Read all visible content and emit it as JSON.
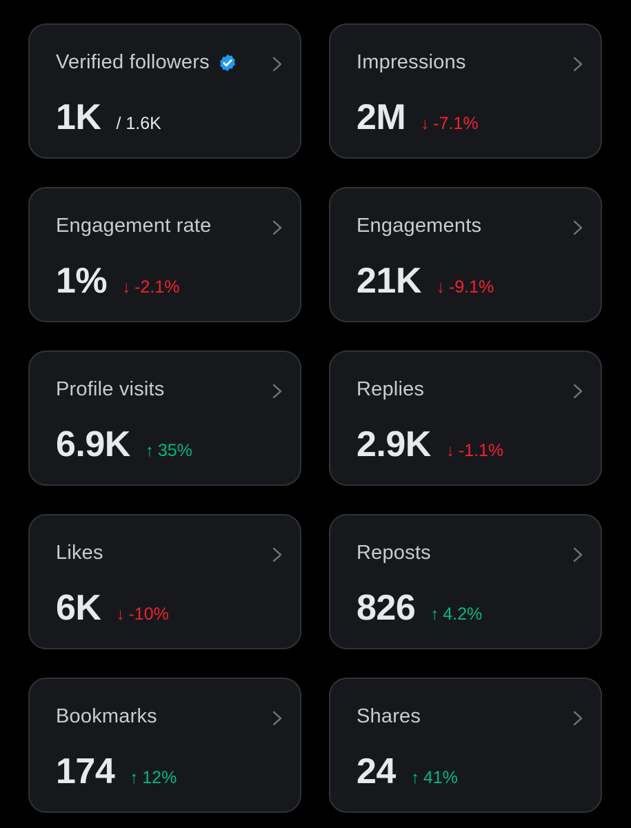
{
  "colors": {
    "background": "#000000",
    "card": "#16181c",
    "border": "#2f3336",
    "text": "#e7e9ea",
    "title": "#c8ccd0",
    "down": "#f4212e",
    "up": "#00ba7c",
    "verified": "#1d9bf0"
  },
  "metrics": [
    {
      "title": "Verified followers",
      "value": "1K",
      "sub": "/ 1.6K",
      "verified": true,
      "icon": "chevron-right-icon"
    },
    {
      "title": "Impressions",
      "value": "2M",
      "arrow": "↓",
      "change": "-7.1%",
      "trend": "down",
      "icon": "chevron-right-icon"
    },
    {
      "title": "Engagement rate",
      "value": "1%",
      "arrow": "↓",
      "change": "-2.1%",
      "trend": "down",
      "icon": "chevron-right-icon"
    },
    {
      "title": "Engagements",
      "value": "21K",
      "arrow": "↓",
      "change": "-9.1%",
      "trend": "down",
      "icon": "chevron-right-icon"
    },
    {
      "title": "Profile visits",
      "value": "6.9K",
      "arrow": "↑",
      "change": "35%",
      "trend": "up",
      "icon": "chevron-right-icon"
    },
    {
      "title": "Replies",
      "value": "2.9K",
      "arrow": "↓",
      "change": "-1.1%",
      "trend": "down",
      "icon": "chevron-right-icon"
    },
    {
      "title": "Likes",
      "value": "6K",
      "arrow": "↓",
      "change": "-10%",
      "trend": "down",
      "icon": "chevron-right-icon"
    },
    {
      "title": "Reposts",
      "value": "826",
      "arrow": "↑",
      "change": "4.2%",
      "trend": "up",
      "icon": "chevron-right-icon"
    },
    {
      "title": "Bookmarks",
      "value": "174",
      "arrow": "↑",
      "change": "12%",
      "trend": "up",
      "icon": "chevron-right-icon"
    },
    {
      "title": "Shares",
      "value": "24",
      "arrow": "↑",
      "change": "41%",
      "trend": "up",
      "icon": "chevron-right-icon"
    }
  ]
}
